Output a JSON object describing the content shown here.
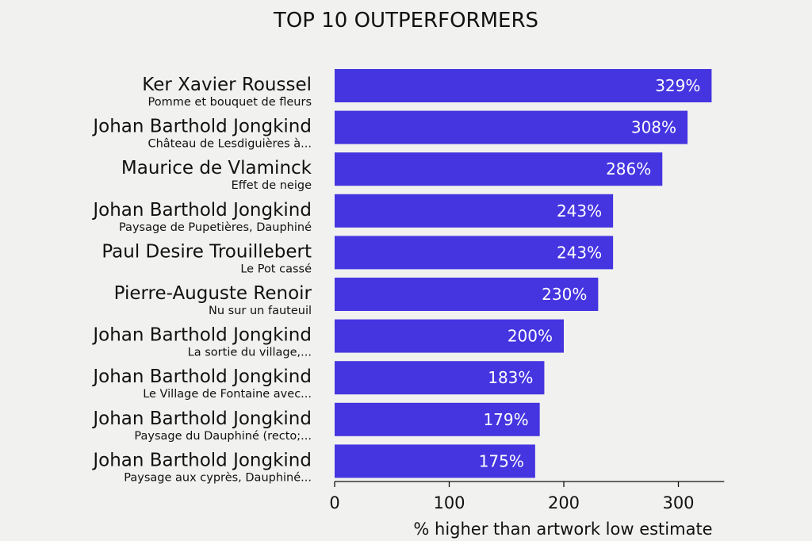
{
  "chart_data": {
    "type": "bar",
    "orientation": "horizontal",
    "title": "TOP 10 OUTPERFORMERS",
    "xlabel": "% higher than artwork low estimate",
    "ylabel": "",
    "xlim": [
      0,
      340
    ],
    "xticks": [
      0,
      100,
      200,
      300
    ],
    "grid": false,
    "bar_color": "#4535e0",
    "value_suffix": "%",
    "categories": [
      {
        "artist": "Ker Xavier Roussel",
        "work": "Pomme et bouquet de fleurs"
      },
      {
        "artist": "Johan Barthold Jongkind",
        "work": "Château de Lesdiguières à..."
      },
      {
        "artist": "Maurice de Vlaminck",
        "work": "Effet de neige"
      },
      {
        "artist": "Johan Barthold Jongkind",
        "work": "Paysage de Pupetières, Dauphiné"
      },
      {
        "artist": "Paul Desire Trouillebert",
        "work": "Le Pot cassé"
      },
      {
        "artist": "Pierre-Auguste Renoir",
        "work": "Nu sur un fauteuil"
      },
      {
        "artist": "Johan Barthold Jongkind",
        "work": "La sortie du village,..."
      },
      {
        "artist": "Johan Barthold Jongkind",
        "work": "Le Village de Fontaine avec..."
      },
      {
        "artist": "Johan Barthold Jongkind",
        "work": "Paysage du Dauphiné (recto;..."
      },
      {
        "artist": "Johan Barthold Jongkind",
        "work": "Paysage aux cyprès, Dauphiné..."
      }
    ],
    "values": [
      329,
      308,
      286,
      243,
      243,
      230,
      200,
      183,
      179,
      175
    ]
  }
}
